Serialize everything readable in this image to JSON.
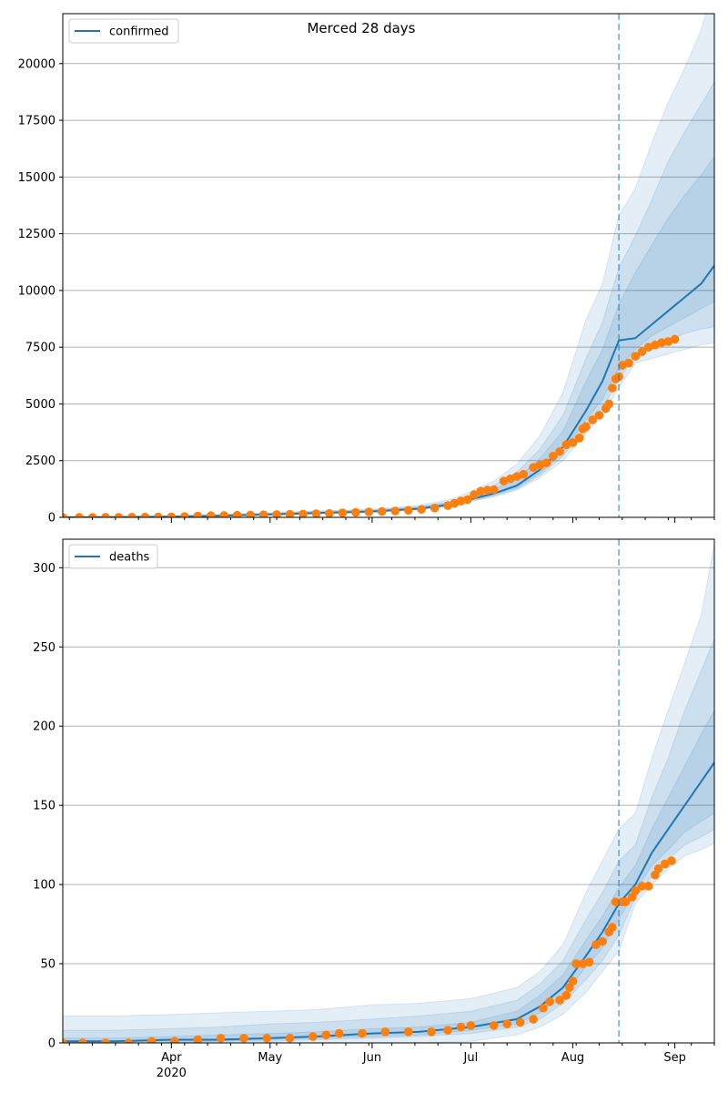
{
  "figure_title": "Merced 28 days",
  "chart_data": [
    {
      "type": "line",
      "legend": "confirmed",
      "legend_location": "upper-left",
      "grid": "y",
      "ylim": [
        0,
        22200
      ],
      "yticks": [
        0,
        2500,
        5000,
        7500,
        10000,
        12500,
        15000,
        17500,
        20000
      ],
      "xlim": [
        "2020-02-28",
        "2020-09-13"
      ],
      "xticks": [
        {
          "date": "2020-04-01",
          "label": "Apr",
          "sublabel": ""
        },
        {
          "date": "2020-05-01",
          "label": "May",
          "sublabel": ""
        },
        {
          "date": "2020-06-01",
          "label": "Jun",
          "sublabel": ""
        },
        {
          "date": "2020-07-01",
          "label": "Jul",
          "sublabel": ""
        },
        {
          "date": "2020-08-01",
          "label": "Aug",
          "sublabel": ""
        },
        {
          "date": "2020-09-01",
          "label": "Sep",
          "sublabel": ""
        }
      ],
      "forecast_start": "2020-08-15",
      "model": {
        "x": [
          "2020-02-28",
          "2020-03-15",
          "2020-04-01",
          "2020-04-15",
          "2020-05-01",
          "2020-05-15",
          "2020-06-01",
          "2020-06-15",
          "2020-06-25",
          "2020-07-01",
          "2020-07-08",
          "2020-07-15",
          "2020-07-22",
          "2020-07-29",
          "2020-08-05",
          "2020-08-10",
          "2020-08-15",
          "2020-08-20",
          "2020-08-25",
          "2020-08-30",
          "2020-09-04",
          "2020-09-09",
          "2020-09-13"
        ],
        "median": [
          5,
          10,
          30,
          70,
          130,
          190,
          260,
          380,
          570,
          800,
          1050,
          1400,
          2100,
          3100,
          4700,
          6000,
          7800,
          7900,
          8500,
          9100,
          9700,
          10300,
          11100
        ],
        "bands": [
          {
            "lower": [
              0,
              0,
              10,
              40,
              95,
              150,
              220,
              320,
              480,
              700,
              900,
              1200,
              1750,
              2500,
              3700,
              4500,
              5700,
              6800,
              7000,
              7200,
              7400,
              7600,
              7700
            ],
            "upper": [
              20,
              40,
              70,
              120,
              200,
              280,
              360,
              520,
              800,
              1150,
              1600,
              2350,
              3600,
              5500,
              8700,
              10300,
              13300,
              14500,
              16500,
              18300,
              19800,
              21500,
              23500
            ]
          },
          {
            "lower": [
              0,
              5,
              15,
              50,
              105,
              160,
              230,
              340,
              500,
              720,
              950,
              1250,
              1850,
              2700,
              4000,
              4800,
              6100,
              7100,
              7500,
              7800,
              8100,
              8300,
              8400
            ],
            "upper": [
              15,
              30,
              55,
              105,
              180,
              255,
              330,
              470,
              700,
              1000,
              1400,
              2000,
              3000,
              4500,
              7000,
              8600,
              11000,
              12400,
              14000,
              15700,
              17000,
              18200,
              19200
            ]
          },
          {
            "lower": [
              2,
              7,
              20,
              57,
              115,
              170,
              240,
              355,
              530,
              750,
              990,
              1310,
              1950,
              2850,
              4300,
              5200,
              6600,
              7400,
              8000,
              8400,
              8800,
              9200,
              9500
            ],
            "upper": [
              10,
              20,
              45,
              90,
              160,
              230,
              300,
              430,
              650,
              920,
              1230,
              1700,
              2600,
              3800,
              6000,
              7400,
              9400,
              10800,
              12000,
              13200,
              14200,
              15100,
              15900
            ]
          }
        ]
      },
      "observed": [
        [
          "2020-02-28",
          0
        ],
        [
          "2020-03-04",
          0
        ],
        [
          "2020-03-08",
          0
        ],
        [
          "2020-03-12",
          2
        ],
        [
          "2020-03-16",
          5
        ],
        [
          "2020-03-20",
          8
        ],
        [
          "2020-03-24",
          12
        ],
        [
          "2020-03-28",
          18
        ],
        [
          "2020-04-01",
          25
        ],
        [
          "2020-04-05",
          40
        ],
        [
          "2020-04-09",
          60
        ],
        [
          "2020-04-13",
          75
        ],
        [
          "2020-04-17",
          85
        ],
        [
          "2020-04-21",
          95
        ],
        [
          "2020-04-25",
          105
        ],
        [
          "2020-04-29",
          115
        ],
        [
          "2020-05-03",
          125
        ],
        [
          "2020-05-07",
          135
        ],
        [
          "2020-05-11",
          145
        ],
        [
          "2020-05-15",
          160
        ],
        [
          "2020-05-19",
          175
        ],
        [
          "2020-05-23",
          200
        ],
        [
          "2020-05-27",
          220
        ],
        [
          "2020-05-31",
          240
        ],
        [
          "2020-06-04",
          260
        ],
        [
          "2020-06-08",
          280
        ],
        [
          "2020-06-12",
          310
        ],
        [
          "2020-06-16",
          350
        ],
        [
          "2020-06-20",
          410
        ],
        [
          "2020-06-24",
          520
        ],
        [
          "2020-06-26",
          620
        ],
        [
          "2020-06-28",
          720
        ],
        [
          "2020-06-30",
          780
        ],
        [
          "2020-07-02",
          1000
        ],
        [
          "2020-07-04",
          1150
        ],
        [
          "2020-07-06",
          1200
        ],
        [
          "2020-07-08",
          1220
        ],
        [
          "2020-07-11",
          1600
        ],
        [
          "2020-07-13",
          1700
        ],
        [
          "2020-07-15",
          1800
        ],
        [
          "2020-07-17",
          1900
        ],
        [
          "2020-07-20",
          2200
        ],
        [
          "2020-07-22",
          2300
        ],
        [
          "2020-07-24",
          2400
        ],
        [
          "2020-07-26",
          2700
        ],
        [
          "2020-07-28",
          2900
        ],
        [
          "2020-07-30",
          3200
        ],
        [
          "2020-08-01",
          3300
        ],
        [
          "2020-08-03",
          3500
        ],
        [
          "2020-08-04",
          3900
        ],
        [
          "2020-08-05",
          4000
        ],
        [
          "2020-08-07",
          4300
        ],
        [
          "2020-08-09",
          4500
        ],
        [
          "2020-08-11",
          4800
        ],
        [
          "2020-08-12",
          5000
        ],
        [
          "2020-08-13",
          5700
        ],
        [
          "2020-08-14",
          6100
        ],
        [
          "2020-08-15",
          6200
        ],
        [
          "2020-08-16",
          6700
        ],
        [
          "2020-08-18",
          6800
        ],
        [
          "2020-08-20",
          7100
        ],
        [
          "2020-08-22",
          7300
        ],
        [
          "2020-08-24",
          7500
        ],
        [
          "2020-08-26",
          7600
        ],
        [
          "2020-08-28",
          7700
        ],
        [
          "2020-08-30",
          7750
        ],
        [
          "2020-09-01",
          7850
        ]
      ]
    },
    {
      "type": "line",
      "legend": "deaths",
      "legend_location": "upper-left",
      "grid": "y",
      "ylim": [
        0,
        318
      ],
      "yticks": [
        0,
        50,
        100,
        150,
        200,
        250,
        300
      ],
      "xlim": [
        "2020-02-28",
        "2020-09-13"
      ],
      "xticks": [
        {
          "date": "2020-04-01",
          "label": "Apr",
          "sublabel": "2020"
        },
        {
          "date": "2020-05-01",
          "label": "May",
          "sublabel": ""
        },
        {
          "date": "2020-06-01",
          "label": "Jun",
          "sublabel": ""
        },
        {
          "date": "2020-07-01",
          "label": "Jul",
          "sublabel": ""
        },
        {
          "date": "2020-08-01",
          "label": "Aug",
          "sublabel": ""
        },
        {
          "date": "2020-09-01",
          "label": "Sep",
          "sublabel": ""
        }
      ],
      "forecast_start": "2020-08-15",
      "model": {
        "x": [
          "2020-02-28",
          "2020-03-15",
          "2020-04-01",
          "2020-04-15",
          "2020-05-01",
          "2020-05-15",
          "2020-06-01",
          "2020-06-15",
          "2020-07-01",
          "2020-07-15",
          "2020-07-22",
          "2020-07-29",
          "2020-08-05",
          "2020-08-10",
          "2020-08-15",
          "2020-08-20",
          "2020-08-25",
          "2020-08-30",
          "2020-09-04",
          "2020-09-09",
          "2020-09-13"
        ],
        "median": [
          1,
          1,
          2,
          2,
          3,
          4,
          6,
          7,
          10,
          15,
          23,
          35,
          55,
          70,
          88,
          100,
          120,
          135,
          150,
          165,
          177
        ],
        "bands": [
          {
            "lower": [
              0,
              0,
              0,
              0,
              0,
              0,
              0,
              0,
              1,
              5,
              10,
              18,
              32,
              45,
              58,
              88,
              100,
              110,
              118,
              122,
              126
            ],
            "upper": [
              17,
              17,
              18,
              19,
              20,
              21,
              24,
              25,
              28,
              35,
              45,
              62,
              95,
              115,
              135,
              145,
              180,
              210,
              240,
              270,
              315
            ]
          },
          {
            "lower": [
              0,
              0,
              0,
              1,
              1,
              2,
              3,
              4,
              6,
              10,
              15,
              25,
              40,
              52,
              68,
              92,
              105,
              116,
              125,
              130,
              135
            ],
            "upper": [
              8,
              8,
              9,
              10,
              12,
              13,
              15,
              17,
              20,
              27,
              37,
              52,
              78,
              95,
              115,
              125,
              155,
              180,
              210,
              235,
              255
            ]
          },
          {
            "lower": [
              1,
              1,
              1,
              1,
              2,
              3,
              4,
              5,
              8,
              12,
              19,
              30,
              48,
              60,
              78,
              96,
              112,
              122,
              133,
              140,
              145
            ],
            "upper": [
              3,
              3,
              4,
              5,
              6,
              7,
              9,
              10,
              13,
              20,
              30,
              43,
              65,
              80,
              98,
              112,
              135,
              155,
              175,
              195,
              210
            ]
          }
        ]
      },
      "observed": [
        [
          "2020-02-28",
          0
        ],
        [
          "2020-03-05",
          0
        ],
        [
          "2020-03-12",
          0
        ],
        [
          "2020-03-19",
          0
        ],
        [
          "2020-03-26",
          1
        ],
        [
          "2020-04-02",
          1
        ],
        [
          "2020-04-09",
          2
        ],
        [
          "2020-04-16",
          3
        ],
        [
          "2020-04-23",
          3
        ],
        [
          "2020-04-30",
          3
        ],
        [
          "2020-05-07",
          3
        ],
        [
          "2020-05-14",
          4
        ],
        [
          "2020-05-18",
          5
        ],
        [
          "2020-05-22",
          6
        ],
        [
          "2020-05-29",
          6
        ],
        [
          "2020-06-05",
          7
        ],
        [
          "2020-06-12",
          7
        ],
        [
          "2020-06-19",
          7
        ],
        [
          "2020-06-24",
          8
        ],
        [
          "2020-06-28",
          10
        ],
        [
          "2020-07-01",
          11
        ],
        [
          "2020-07-08",
          11
        ],
        [
          "2020-07-12",
          12
        ],
        [
          "2020-07-16",
          13
        ],
        [
          "2020-07-20",
          15
        ],
        [
          "2020-07-23",
          22
        ],
        [
          "2020-07-25",
          26
        ],
        [
          "2020-07-28",
          27
        ],
        [
          "2020-07-30",
          30
        ],
        [
          "2020-07-31",
          35
        ],
        [
          "2020-08-01",
          39
        ],
        [
          "2020-08-02",
          50
        ],
        [
          "2020-08-04",
          50
        ],
        [
          "2020-08-06",
          51
        ],
        [
          "2020-08-08",
          62
        ],
        [
          "2020-08-10",
          64
        ],
        [
          "2020-08-12",
          70
        ],
        [
          "2020-08-13",
          73
        ],
        [
          "2020-08-14",
          89
        ],
        [
          "2020-08-16",
          89
        ],
        [
          "2020-08-17",
          89
        ],
        [
          "2020-08-19",
          92
        ],
        [
          "2020-08-20",
          96
        ],
        [
          "2020-08-22",
          99
        ],
        [
          "2020-08-24",
          99
        ],
        [
          "2020-08-26",
          106
        ],
        [
          "2020-08-27",
          110
        ],
        [
          "2020-08-29",
          113
        ],
        [
          "2020-08-31",
          115
        ]
      ]
    }
  ],
  "colors": {
    "median": "#1f77b4",
    "band": "#1f77b4",
    "observed": "#ff7f0e",
    "forecast_line": "#1f77b4",
    "grid": "#b0b0b0"
  }
}
